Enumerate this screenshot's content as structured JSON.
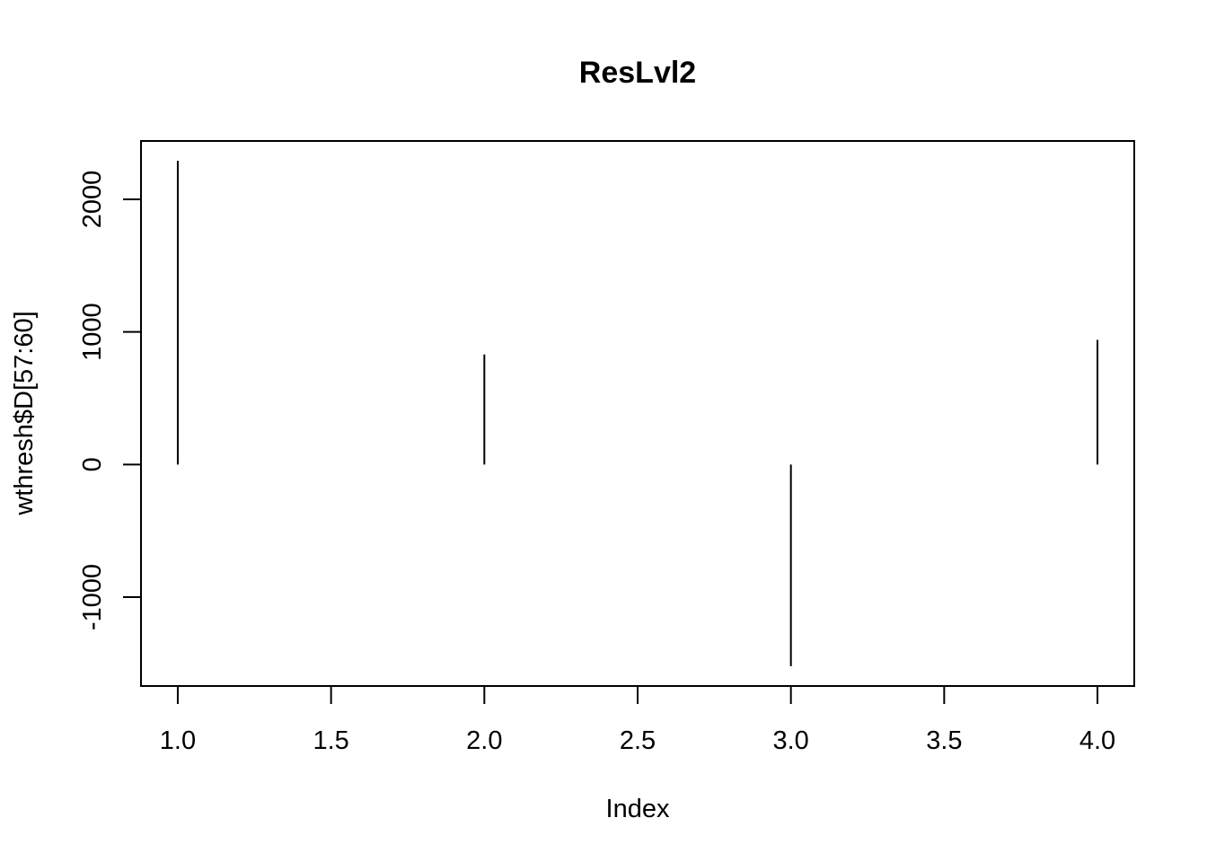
{
  "chart_data": {
    "type": "line",
    "plot_style": "vertical-lines-from-zero",
    "title": "ResLvl2",
    "xlabel": "Index",
    "ylabel": "wthresh$D[57:60]",
    "x": [
      1,
      2,
      3,
      4
    ],
    "series": [
      {
        "values": [
          2290,
          830,
          -1520,
          940
        ]
      }
    ],
    "xlim": [
      0.88,
      4.12
    ],
    "ylim": [
      -1670,
      2440
    ],
    "xticks": [
      1.0,
      1.5,
      2.0,
      2.5,
      3.0,
      3.5,
      4.0
    ],
    "xtick_labels": [
      "1.0",
      "1.5",
      "2.0",
      "2.5",
      "3.0",
      "3.5",
      "4.0"
    ],
    "yticks": [
      -1000,
      0,
      1000,
      2000
    ],
    "ytick_labels": [
      "-1000",
      "0",
      "1000",
      "2000"
    ],
    "grid": false,
    "line_color": "#000000"
  }
}
